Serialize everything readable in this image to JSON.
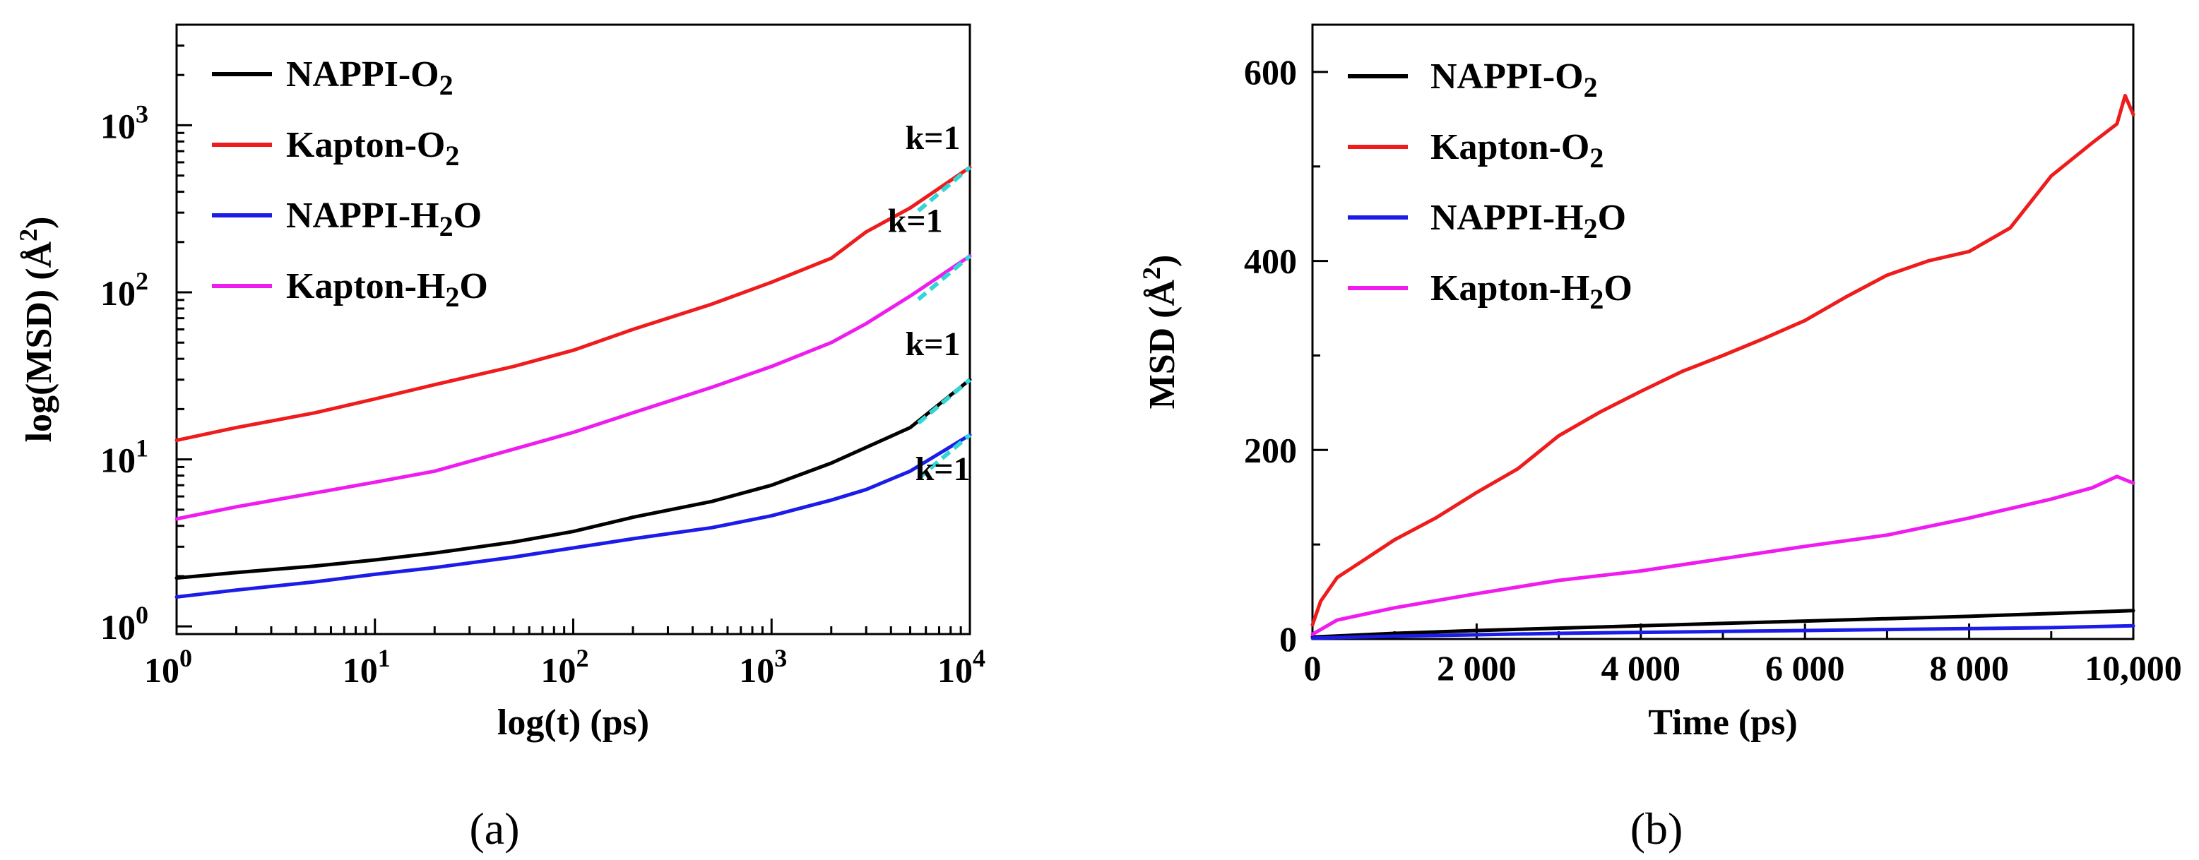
{
  "chart_data": [
    {
      "panel": "(a)",
      "type": "line",
      "xscale": "log",
      "yscale": "log",
      "xlabel": "log(t) (ps)",
      "ylabel": "log(MSD) (Å²)",
      "xlim": [
        1,
        10000
      ],
      "ylim": [
        0.9,
        4000
      ],
      "x_ticks": [
        {
          "value": 1,
          "base": "10",
          "exp": "0"
        },
        {
          "value": 10,
          "base": "10",
          "exp": "1"
        },
        {
          "value": 100,
          "base": "10",
          "exp": "2"
        },
        {
          "value": 1000,
          "base": "10",
          "exp": "3"
        },
        {
          "value": 10000,
          "base": "10",
          "exp": "4"
        }
      ],
      "y_ticks": [
        {
          "value": 1,
          "base": "10",
          "exp": "0"
        },
        {
          "value": 10,
          "base": "10",
          "exp": "1"
        },
        {
          "value": 100,
          "base": "10",
          "exp": "2"
        },
        {
          "value": 1000,
          "base": "10",
          "exp": "3"
        }
      ],
      "legend_position": "top-left",
      "series": [
        {
          "name": "NAPPI-O2",
          "label": "NAPPI-O",
          "sub": "2",
          "color": "#000000",
          "x": [
            1,
            2,
            5,
            10,
            20,
            50,
            100,
            200,
            500,
            1000,
            2000,
            3000,
            5000,
            10000
          ],
          "y": [
            1.95,
            2.1,
            2.3,
            2.5,
            2.75,
            3.2,
            3.7,
            4.5,
            5.6,
            7.0,
            9.5,
            11.8,
            15.5,
            30
          ]
        },
        {
          "name": "Kapton-O2",
          "label": "Kapton-O",
          "sub": "2",
          "color": "#ee1c1c",
          "x": [
            1,
            2,
            5,
            10,
            20,
            50,
            100,
            200,
            500,
            1000,
            2000,
            3000,
            5000,
            10000
          ],
          "y": [
            13,
            15.5,
            19,
            23,
            28,
            36,
            45,
            60,
            85,
            115,
            160,
            230,
            320,
            560
          ]
        },
        {
          "name": "NAPPI-H2O",
          "label": "NAPPI-H",
          "sub": "2",
          "label_tail": "O",
          "color": "#1c1ce8",
          "x": [
            1,
            2,
            5,
            10,
            20,
            50,
            100,
            200,
            500,
            1000,
            2000,
            3000,
            5000,
            10000
          ],
          "y": [
            1.5,
            1.65,
            1.85,
            2.05,
            2.25,
            2.6,
            2.95,
            3.35,
            3.9,
            4.6,
            5.7,
            6.6,
            8.5,
            14
          ]
        },
        {
          "name": "Kapton-H2O",
          "label": "Kapton-H",
          "sub": "2",
          "label_tail": "O",
          "color": "#ee1cee",
          "x": [
            1,
            2,
            5,
            10,
            20,
            50,
            100,
            200,
            500,
            1000,
            2000,
            3000,
            5000,
            10000
          ],
          "y": [
            4.4,
            5.2,
            6.3,
            7.3,
            8.5,
            11.5,
            14.5,
            19,
            27,
            36,
            50,
            65,
            95,
            165
          ]
        }
      ],
      "annotations": [
        {
          "text": "k=1",
          "x": 6500,
          "y": 720
        },
        {
          "text": "k=1",
          "x": 5300,
          "y": 230
        },
        {
          "text": "k=1",
          "x": 6500,
          "y": 42
        },
        {
          "text": "k=1",
          "x": 7300,
          "y": 7.5
        }
      ]
    },
    {
      "panel": "(b)",
      "type": "line",
      "xlabel": "Time (ps)",
      "ylabel": "MSD (Å²)",
      "xlim": [
        0,
        10000
      ],
      "ylim": [
        0,
        650
      ],
      "x_ticks": [
        {
          "value": 0,
          "label": "0"
        },
        {
          "value": 2000,
          "label": "2 000"
        },
        {
          "value": 4000,
          "label": "4 000"
        },
        {
          "value": 6000,
          "label": "6 000"
        },
        {
          "value": 8000,
          "label": "8 000"
        },
        {
          "value": 10000,
          "label": "10,000"
        }
      ],
      "y_ticks": [
        {
          "value": 0,
          "label": "0"
        },
        {
          "value": 200,
          "label": "200"
        },
        {
          "value": 400,
          "label": "400"
        },
        {
          "value": 600,
          "label": "600"
        }
      ],
      "legend_position": "top-left",
      "series": [
        {
          "name": "NAPPI-O2",
          "label": "NAPPI-O",
          "sub": "2",
          "color": "#000000",
          "x": [
            0,
            1000,
            2000,
            3000,
            4000,
            5000,
            6000,
            7000,
            8000,
            9000,
            10000
          ],
          "y": [
            2,
            6,
            9,
            11.5,
            14,
            16.5,
            19,
            21.5,
            24,
            27,
            30
          ]
        },
        {
          "name": "Kapton-O2",
          "label": "Kapton-O",
          "sub": "2",
          "color": "#ee1c1c",
          "x": [
            0,
            100,
            300,
            600,
            1000,
            1500,
            2000,
            2500,
            3000,
            3500,
            4000,
            4500,
            5000,
            5500,
            6000,
            6500,
            7000,
            7500,
            8000,
            8500,
            9000,
            9500,
            9800,
            9900,
            10000
          ],
          "y": [
            15,
            40,
            65,
            82,
            105,
            128,
            155,
            180,
            215,
            240,
            262,
            283,
            300,
            318,
            337,
            362,
            385,
            400,
            410,
            435,
            490,
            525,
            545,
            575,
            555
          ]
        },
        {
          "name": "NAPPI-H2O",
          "label": "NAPPI-H",
          "sub": "2",
          "label_tail": "O",
          "color": "#1c1ce8",
          "x": [
            0,
            1000,
            2000,
            3000,
            4000,
            5000,
            6000,
            7000,
            8000,
            9000,
            10000
          ],
          "y": [
            1,
            3,
            4.5,
            6,
            7,
            8,
            9,
            10,
            11,
            12,
            14
          ]
        },
        {
          "name": "Kapton-H2O",
          "label": "Kapton-H",
          "sub": "2",
          "label_tail": "O",
          "color": "#ee1cee",
          "x": [
            0,
            300,
            1000,
            2000,
            3000,
            4000,
            5000,
            6000,
            7000,
            8000,
            9000,
            9500,
            9800,
            10000
          ],
          "y": [
            5,
            20,
            33,
            48,
            62,
            72,
            85,
            98,
            110,
            128,
            148,
            160,
            172,
            165
          ]
        }
      ]
    }
  ]
}
